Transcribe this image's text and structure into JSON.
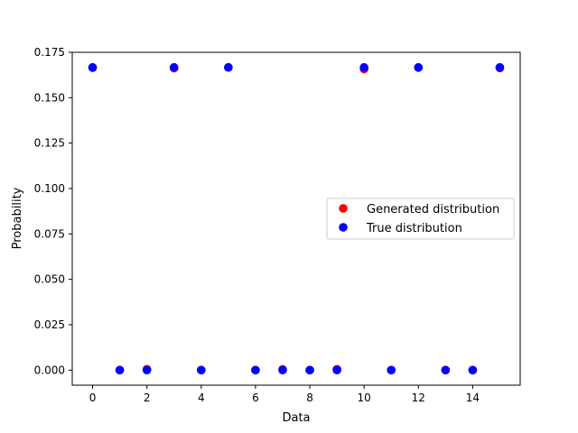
{
  "chart_data": {
    "type": "scatter",
    "xlabel": "Data",
    "ylabel": "Probability",
    "xlim": [
      -0.75,
      15.75
    ],
    "ylim": [
      -0.0083,
      0.175
    ],
    "xticks": [
      0,
      2,
      4,
      6,
      8,
      10,
      12,
      14
    ],
    "yticks": [
      0.0,
      0.025,
      0.05,
      0.075,
      0.1,
      0.125,
      0.15,
      0.175
    ],
    "ytick_labels": [
      "0.000",
      "0.025",
      "0.050",
      "0.075",
      "0.100",
      "0.125",
      "0.150",
      "0.175"
    ],
    "legend_position": "center-right",
    "grid": false,
    "series": [
      {
        "name": "Generated distribution",
        "color": "#ff0000",
        "x": [
          0,
          1,
          2,
          3,
          4,
          5,
          6,
          7,
          8,
          9,
          10,
          11,
          12,
          13,
          14,
          15
        ],
        "y": [
          0.1665,
          0.0,
          0.0005,
          0.1663,
          0.0,
          0.1667,
          0.0,
          0.0004,
          0.0,
          0.0005,
          0.1658,
          0.0,
          0.1666,
          0.0,
          0.0,
          0.1664
        ]
      },
      {
        "name": "True distribution",
        "color": "#0000ff",
        "x": [
          0,
          1,
          2,
          3,
          4,
          5,
          6,
          7,
          8,
          9,
          10,
          11,
          12,
          13,
          14,
          15
        ],
        "y": [
          0.1667,
          0.0,
          0.0,
          0.1667,
          0.0,
          0.1667,
          0.0,
          0.0,
          0.0,
          0.0,
          0.1667,
          0.0,
          0.1667,
          0.0,
          0.0,
          0.1667
        ]
      }
    ]
  }
}
